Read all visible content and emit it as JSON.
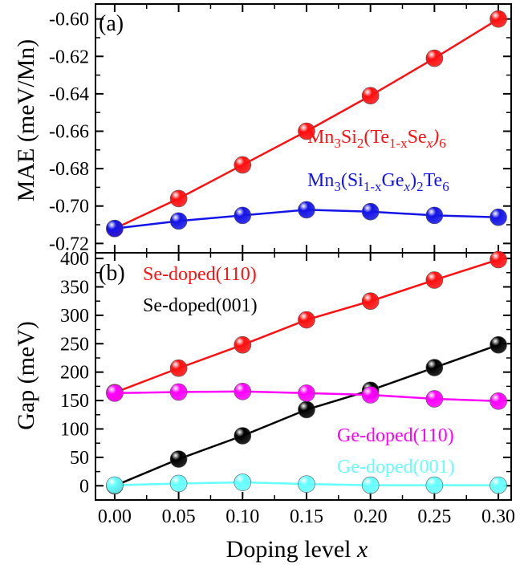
{
  "colors": {
    "red": "#ff1010",
    "blue": "#1414e6",
    "black": "#000000",
    "magenta": "#ff00ff",
    "cyan": "#66ffff"
  },
  "chart_data": [
    {
      "type": "line",
      "panel_label": "(a)",
      "xlabel": "",
      "ylabel": "MAE (meV/Mn)",
      "x": [
        0.0,
        0.05,
        0.1,
        0.15,
        0.2,
        0.25,
        0.3
      ],
      "xlim": [
        -0.015,
        0.31
      ],
      "ylim": [
        -0.725,
        -0.592
      ],
      "yticks": [
        -0.72,
        -0.7,
        -0.68,
        -0.66,
        -0.64,
        -0.62,
        -0.6
      ],
      "ytick_labels": [
        "-0.72",
        "-0.70",
        "-0.68",
        "-0.66",
        "-0.64",
        "-0.62",
        "-0.60"
      ],
      "series": [
        {
          "name": "Mn3Si2(Te1-xSex)6",
          "color": "red",
          "values": [
            -0.712,
            -0.696,
            -0.678,
            -0.66,
            -0.641,
            -0.621,
            -0.6
          ],
          "label_parts": [
            [
              "Mn",
              ""
            ],
            [
              "3",
              "sub"
            ],
            [
              "Si",
              ""
            ],
            [
              "2",
              "sub"
            ],
            [
              "(Te",
              ""
            ],
            [
              "1-x",
              "sub"
            ],
            [
              "Se",
              ""
            ],
            [
              "x",
              "subi"
            ],
            [
              ")",
              "i"
            ],
            [
              "6",
              "sub"
            ]
          ]
        },
        {
          "name": "Mn3(Si1-xGex)2Te6",
          "color": "blue",
          "values": [
            -0.712,
            -0.708,
            -0.705,
            -0.702,
            -0.703,
            -0.705,
            -0.706
          ],
          "label_parts": [
            [
              "Mn",
              ""
            ],
            [
              "3",
              "sub"
            ],
            [
              "(Si",
              ""
            ],
            [
              "1-x",
              "sub"
            ],
            [
              "Ge",
              ""
            ],
            [
              "x",
              "subi"
            ],
            [
              ")",
              ""
            ],
            [
              "2",
              "sub"
            ],
            [
              "Te",
              ""
            ],
            [
              "6",
              "sub"
            ]
          ]
        }
      ]
    },
    {
      "type": "line",
      "panel_label": "(b)",
      "xlabel": "Doping level x",
      "ylabel": "Gap (meV)",
      "x": [
        0.0,
        0.05,
        0.1,
        0.15,
        0.2,
        0.25,
        0.3
      ],
      "xlim": [
        -0.015,
        0.31
      ],
      "ylim": [
        -25,
        410
      ],
      "yticks": [
        0,
        50,
        100,
        150,
        200,
        250,
        300,
        350,
        400
      ],
      "ytick_labels": [
        "0",
        "50",
        "100",
        "150",
        "200",
        "250",
        "300",
        "350",
        "400"
      ],
      "xticks": [
        0.0,
        0.05,
        0.1,
        0.15,
        0.2,
        0.25,
        0.3
      ],
      "xtick_labels": [
        "0.00",
        "0.05",
        "0.10",
        "0.15",
        "0.20",
        "0.25",
        "0.30"
      ],
      "series": [
        {
          "name": "Se-doped(110)",
          "color": "red",
          "values": [
            164,
            207,
            248,
            292,
            325,
            362,
            398
          ]
        },
        {
          "name": "Se-doped(001)",
          "color": "black",
          "values": [
            0,
            47,
            88,
            134,
            168,
            208,
            248
          ]
        },
        {
          "name": "Ge-doped(110)",
          "color": "magenta",
          "values": [
            163,
            165,
            166,
            163,
            160,
            153,
            149
          ]
        },
        {
          "name": "Ge-doped(001)",
          "color": "cyan",
          "values": [
            1,
            4,
            6,
            3,
            1,
            1,
            1
          ]
        }
      ]
    }
  ]
}
